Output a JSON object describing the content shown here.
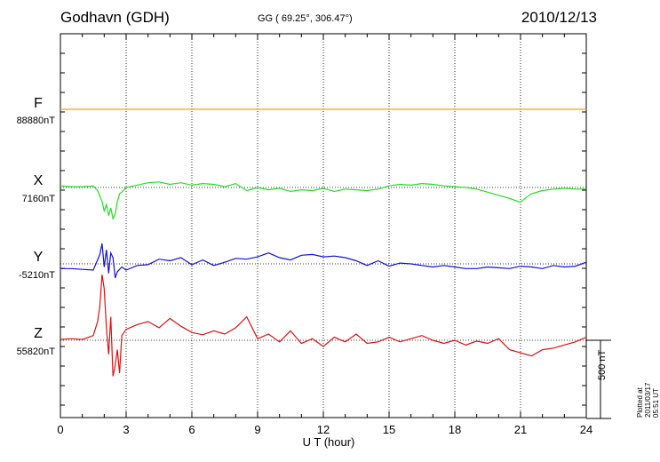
{
  "header": {
    "station": "Godhavn (GDH)",
    "coords": "GG ( 69.25°, 306.47°)",
    "date": "2010/12/13"
  },
  "scale_label": "500 nT",
  "plotted_label": "Plotted at 2011/03/17 05:51  UT",
  "colors": {
    "F": "#f5a800",
    "X": "#22e022",
    "Y": "#1010e0",
    "Z": "#e01010"
  },
  "chart_data": {
    "type": "line",
    "xlabel": "U T (hour)",
    "xlim": [
      0,
      24
    ],
    "x_ticks": [
      "0",
      "3",
      "6",
      "9",
      "12",
      "15",
      "18",
      "21",
      "24"
    ],
    "grid": "dotted vertical at 3-hour intervals",
    "scale_bar_nT": 500,
    "series": [
      {
        "name": "F",
        "baseline_label": "88880nT",
        "x": [
          0,
          24
        ],
        "values": [
          0,
          0
        ]
      },
      {
        "name": "X",
        "baseline_label": "7160nT",
        "x": [
          0,
          0.5,
          1,
          1.5,
          1.7,
          1.9,
          2.0,
          2.1,
          2.2,
          2.3,
          2.4,
          2.5,
          2.6,
          2.7,
          2.8,
          3.0,
          3.5,
          4,
          4.5,
          5,
          5.5,
          6,
          6.5,
          7,
          7.5,
          8,
          8.5,
          9,
          9.5,
          10,
          10.5,
          11,
          11.5,
          12,
          12.5,
          13,
          13.5,
          14,
          14.5,
          15,
          15.5,
          16,
          16.5,
          17,
          17.5,
          18,
          18.5,
          19,
          19.5,
          20,
          20.5,
          20.8,
          21.0,
          21.2,
          21.5,
          22,
          22.5,
          23,
          23.5,
          24
        ],
        "values": [
          10,
          5,
          5,
          10,
          -20,
          -90,
          -150,
          -110,
          -180,
          -130,
          -200,
          -170,
          -90,
          -40,
          -30,
          0,
          15,
          30,
          35,
          20,
          30,
          15,
          25,
          20,
          5,
          25,
          -20,
          0,
          -15,
          -5,
          -25,
          -15,
          -20,
          -5,
          -25,
          -10,
          -15,
          -20,
          -10,
          10,
          20,
          15,
          25,
          20,
          10,
          5,
          0,
          -10,
          -30,
          -50,
          -70,
          -85,
          -95,
          -70,
          -40,
          -20,
          -10,
          -5,
          -10,
          -10
        ]
      },
      {
        "name": "Y",
        "baseline_label": "-5210nT",
        "x": [
          0,
          0.5,
          1,
          1.5,
          1.8,
          1.9,
          2.0,
          2.1,
          2.2,
          2.3,
          2.4,
          2.5,
          2.6,
          2.8,
          3.0,
          3.5,
          4,
          4.5,
          5,
          5.5,
          6,
          6.5,
          7,
          7.5,
          8,
          8.5,
          9,
          9.5,
          10,
          10.5,
          11,
          11.5,
          12,
          12.5,
          13,
          13.5,
          14,
          14.5,
          15,
          15.5,
          16,
          16.5,
          17,
          17.5,
          18,
          18.5,
          19,
          19.5,
          20,
          20.5,
          21,
          21.5,
          22,
          22.5,
          23,
          23.5,
          24
        ],
        "values": [
          -30,
          -30,
          -35,
          -40,
          60,
          130,
          -20,
          90,
          -60,
          70,
          40,
          -90,
          -50,
          -20,
          -40,
          -10,
          -5,
          30,
          20,
          40,
          -5,
          25,
          -10,
          10,
          35,
          30,
          45,
          70,
          40,
          25,
          55,
          60,
          45,
          50,
          40,
          20,
          -10,
          20,
          -15,
          5,
          0,
          -10,
          -20,
          -10,
          -20,
          -30,
          -30,
          -20,
          -25,
          -30,
          -15,
          -20,
          -30,
          -10,
          -20,
          -15,
          10
        ]
      },
      {
        "name": "Z",
        "baseline_label": "55820nT",
        "x": [
          0,
          0.5,
          1,
          1.5,
          1.7,
          1.8,
          1.9,
          2.0,
          2.1,
          2.2,
          2.3,
          2.4,
          2.5,
          2.6,
          2.7,
          2.8,
          3.0,
          3.5,
          4,
          4.5,
          5,
          5.5,
          6,
          6.5,
          7,
          7.5,
          8,
          8.5,
          9,
          9.5,
          10,
          10.5,
          11,
          11.5,
          12,
          12.5,
          13,
          13.5,
          14,
          14.5,
          15,
          15.5,
          16,
          16.5,
          17,
          17.5,
          18,
          18.5,
          19,
          19.5,
          20,
          20.5,
          21,
          21.5,
          22,
          22.5,
          23,
          23.5,
          24
        ],
        "values": [
          5,
          10,
          5,
          30,
          120,
          220,
          420,
          330,
          80,
          -90,
          150,
          -230,
          -160,
          -60,
          -210,
          30,
          70,
          100,
          120,
          80,
          140,
          90,
          50,
          35,
          60,
          40,
          80,
          150,
          10,
          40,
          -10,
          60,
          -20,
          10,
          -40,
          20,
          -10,
          40,
          -20,
          -10,
          20,
          -10,
          10,
          30,
          0,
          -20,
          0,
          -30,
          -5,
          -20,
          10,
          -60,
          -80,
          -100,
          -60,
          -50,
          -30,
          -10,
          20
        ]
      }
    ]
  }
}
